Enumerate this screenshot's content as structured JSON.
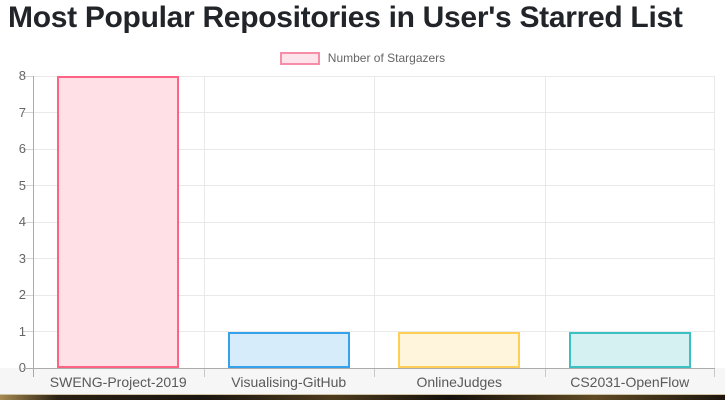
{
  "header": {
    "title": "Most Popular Repositories in User's Starred List"
  },
  "chart_data": {
    "type": "bar",
    "title": "Most Popular Repositories in User's Starred List",
    "legend": [
      {
        "label": "Number of Stargazers",
        "swatch_fill": "#fde3ea",
        "swatch_border": "#f78da8"
      }
    ],
    "legend_position": "top-center",
    "categories": [
      "SWENG-Project-2019",
      "Visualising-GitHub",
      "OnlineJudges",
      "CS2031-OpenFlow"
    ],
    "values": [
      8,
      1,
      1,
      1
    ],
    "xlabel": "",
    "ylabel": "",
    "ylim": [
      0,
      8
    ],
    "yticks": [
      0,
      1,
      2,
      3,
      4,
      5,
      6,
      7,
      8
    ],
    "grid": true,
    "bar_fill_colors": [
      "#ffe0e7",
      "#d7ecfb",
      "#fff5dd",
      "#d6f1f2"
    ],
    "bar_border_colors": [
      "#ff6384",
      "#36a2eb",
      "#ffce56",
      "#3bc1c4"
    ]
  },
  "colors": {
    "title_text": "#212529",
    "axis_line": "#ababab",
    "gridline": "#e9e9e9",
    "tick_text": "#666666",
    "x_band_bg": "#f6f6f6"
  }
}
